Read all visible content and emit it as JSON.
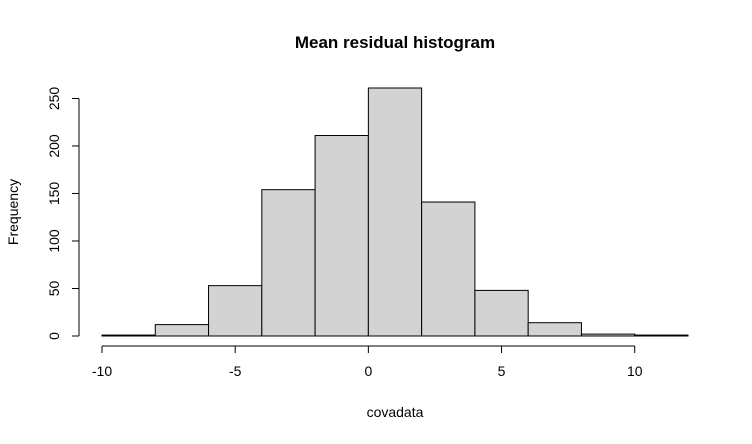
{
  "chart_data": {
    "type": "bar",
    "title": "Mean residual histogram",
    "xlabel": "covadata",
    "ylabel": "Frequency",
    "bin_edges": [
      -10,
      -8,
      -6,
      -4,
      -2,
      0,
      2,
      4,
      6,
      8,
      10,
      12
    ],
    "values": [
      1,
      12,
      53,
      154,
      211,
      261,
      141,
      48,
      14,
      2,
      1
    ],
    "xlim": [
      -10,
      12
    ],
    "ylim": [
      0,
      261
    ],
    "xticks": [
      -10,
      -5,
      0,
      5,
      10
    ],
    "yticks": [
      0,
      50,
      100,
      150,
      200,
      250
    ],
    "bar_fill": "#d3d3d3",
    "bar_stroke": "#000000",
    "grid": false
  }
}
